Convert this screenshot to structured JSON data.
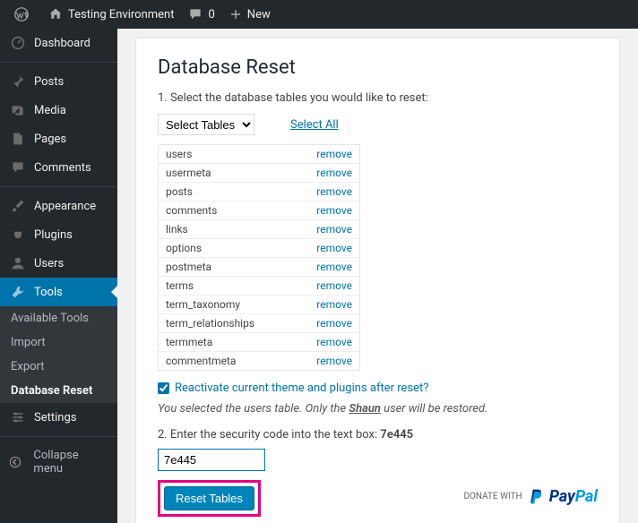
{
  "adminbar": {
    "site_name": "Testing Environment",
    "comments_count": "0",
    "new_label": "New"
  },
  "sidebar": {
    "items": [
      {
        "key": "dashboard",
        "label": "Dashboard"
      },
      {
        "key": "posts",
        "label": "Posts"
      },
      {
        "key": "media",
        "label": "Media"
      },
      {
        "key": "pages",
        "label": "Pages"
      },
      {
        "key": "comments",
        "label": "Comments"
      },
      {
        "key": "appearance",
        "label": "Appearance"
      },
      {
        "key": "plugins",
        "label": "Plugins"
      },
      {
        "key": "users",
        "label": "Users"
      },
      {
        "key": "tools",
        "label": "Tools"
      },
      {
        "key": "settings",
        "label": "Settings"
      }
    ],
    "submenu": [
      {
        "label": "Available Tools"
      },
      {
        "label": "Import"
      },
      {
        "label": "Export"
      },
      {
        "label": "Database Reset",
        "active": true
      }
    ],
    "collapse_label": "Collapse menu"
  },
  "page": {
    "title": "Database Reset",
    "step1": "1. Select the database tables you would like to reset:",
    "select_placeholder": "Select Tables",
    "select_all": "Select All",
    "tables": [
      "users",
      "usermeta",
      "posts",
      "comments",
      "links",
      "options",
      "postmeta",
      "terms",
      "term_taxonomy",
      "term_relationships",
      "termmeta",
      "commentmeta"
    ],
    "remove_label": "remove",
    "reactivate_label": "Reactivate current theme and plugins after reset?",
    "note_prefix": "You selected the users table. Only the ",
    "note_user": "Shaun",
    "note_suffix": " user will be restored.",
    "step2_prefix": "2. Enter the security code into the text box: ",
    "security_code": "7e445",
    "input_value": "7e445",
    "reset_button": "Reset Tables",
    "donate_label": "DONATE WITH",
    "paypal_p": "Pay",
    "paypal_pal": "Pal"
  },
  "colors": {
    "accent": "#0073aa",
    "highlight": "#e6007e",
    "sidebar_bg": "#23282d"
  }
}
